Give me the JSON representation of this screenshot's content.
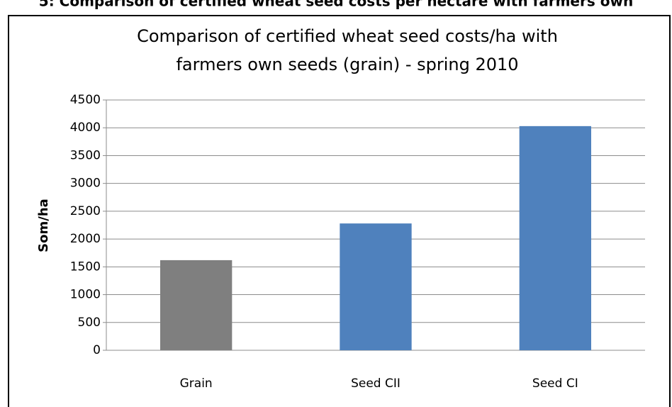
{
  "caption": "5: Comparison of certified wheat seed costs per hectare with farmers own",
  "chart_data": {
    "type": "bar",
    "title": [
      "Comparison of certified wheat seed costs/ha with",
      "farmers own seeds (grain) - spring 2010"
    ],
    "y_label": "Som/ha",
    "categories": [
      "Grain",
      "Seed CII",
      "Seed CI"
    ],
    "values": [
      1620,
      2280,
      4030
    ],
    "colors": [
      "#7f7f7f",
      "#4f81bd",
      "#4f81bd"
    ],
    "ylim": [
      0,
      4500
    ],
    "yticks": [
      0,
      500,
      1000,
      1500,
      2000,
      2500,
      3000,
      3500,
      4000,
      4500
    ],
    "grid": true
  }
}
